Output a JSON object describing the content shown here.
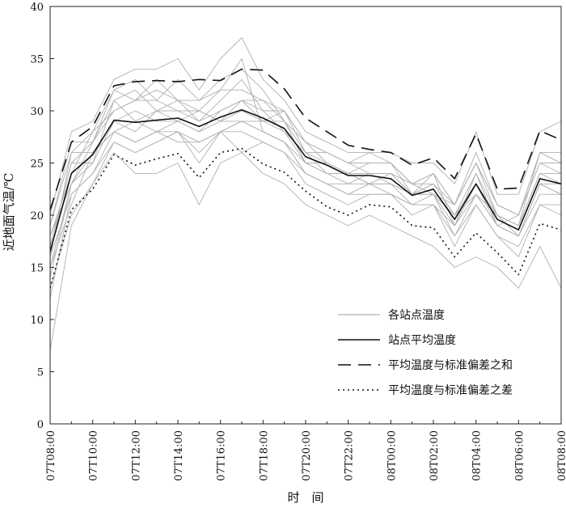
{
  "chart_data": {
    "type": "line",
    "xlabel": "时　间",
    "ylabel": "近地面气温/℃",
    "ylim": [
      0,
      40
    ],
    "yticks": [
      0,
      5,
      10,
      15,
      20,
      25,
      30,
      35,
      40
    ],
    "x": [
      "07T08:00",
      "07T09:00",
      "07T10:00",
      "07T11:00",
      "07T12:00",
      "07T13:00",
      "07T14:00",
      "07T15:00",
      "07T16:00",
      "07T17:00",
      "07T18:00",
      "07T19:00",
      "07T20:00",
      "07T21:00",
      "07T22:00",
      "07T23:00",
      "08T00:00",
      "08T01:00",
      "08T02:00",
      "08T03:00",
      "08T04:00",
      "08T05:00",
      "08T06:00",
      "08T07:00",
      "08T08:00"
    ],
    "xtick_labels": [
      "07T08:00",
      "07T10:00",
      "07T12:00",
      "07T14:00",
      "07T16:00",
      "07T18:00",
      "07T20:00",
      "07T22:00",
      "08T00:00",
      "08T02:00",
      "08T04:00",
      "08T06:00",
      "08T08:00"
    ],
    "grid": false,
    "legend_position": "bottom-right",
    "series": [
      {
        "name": "站点平均温度",
        "style": "solid",
        "color": "#111111",
        "values": [
          16.5,
          24.0,
          25.8,
          29.1,
          28.9,
          29.1,
          29.3,
          28.5,
          29.4,
          30.1,
          29.3,
          28.3,
          25.6,
          24.8,
          23.8,
          23.8,
          23.5,
          21.9,
          22.5,
          19.6,
          23.0,
          19.6,
          18.6,
          23.5,
          23.0
        ]
      },
      {
        "name": "平均温度与标准偏差之和",
        "style": "dashed",
        "color": "#111111",
        "values": [
          20.5,
          27.0,
          28.5,
          32.4,
          32.8,
          32.9,
          32.8,
          33.0,
          32.9,
          34.0,
          33.9,
          32.1,
          29.3,
          28.0,
          26.7,
          26.3,
          26.0,
          24.8,
          25.5,
          23.5,
          27.8,
          22.5,
          22.6,
          28.1,
          27.2
        ]
      },
      {
        "name": "平均温度与标准偏差之差",
        "style": "dotted",
        "color": "#111111",
        "values": [
          13.0,
          20.5,
          22.5,
          25.8,
          24.8,
          25.4,
          25.9,
          23.6,
          26.0,
          26.4,
          24.9,
          24.1,
          22.3,
          20.8,
          20.0,
          21.0,
          20.8,
          19.0,
          18.8,
          16.0,
          18.3,
          16.4,
          14.3,
          19.2,
          18.6
        ]
      },
      {
        "name": "各站点温度",
        "style": "solid",
        "color": "#b0b0b0",
        "group": "stations",
        "values": [
          18.0,
          23.0,
          27.0,
          30.0,
          31.0,
          33.0,
          31.0,
          31.0,
          32.0,
          35.0,
          28.0,
          27.0,
          25.0,
          24.0,
          24.0,
          23.0,
          24.0,
          23.0,
          22.0,
          21.0,
          25.0,
          20.0,
          19.0,
          26.0,
          25.0
        ]
      },
      {
        "name": "",
        "style": "solid",
        "color": "#b0b0b0",
        "group": "stations",
        "values": [
          12.0,
          22.0,
          24.0,
          27.0,
          26.0,
          27.0,
          28.0,
          25.0,
          28.0,
          26.0,
          27.0,
          26.0,
          23.0,
          22.0,
          21.0,
          22.0,
          22.0,
          20.0,
          21.0,
          17.0,
          21.0,
          18.0,
          17.0,
          21.0,
          20.0
        ]
      },
      {
        "name": "",
        "style": "solid",
        "color": "#b0b0b0",
        "group": "stations",
        "values": [
          20.0,
          28.0,
          29.0,
          33.0,
          34.0,
          34.0,
          35.0,
          32.0,
          35.0,
          37.0,
          33.0,
          31.0,
          28.0,
          27.0,
          26.0,
          26.0,
          26.0,
          25.0,
          25.0,
          23.0,
          28.0,
          22.0,
          22.0,
          28.0,
          29.0
        ]
      },
      {
        "name": "",
        "style": "solid",
        "color": "#b0b0b0",
        "group": "stations",
        "values": [
          7.0,
          19.0,
          23.0,
          26.0,
          24.0,
          24.0,
          25.0,
          21.0,
          25.0,
          26.0,
          24.0,
          23.0,
          21.0,
          20.0,
          19.0,
          20.0,
          19.0,
          18.0,
          17.0,
          15.0,
          16.0,
          15.0,
          13.0,
          17.0,
          13.0
        ]
      },
      {
        "name": "",
        "style": "solid",
        "color": "#b0b0b0",
        "group": "stations",
        "values": [
          17.0,
          25.0,
          25.0,
          31.0,
          29.0,
          30.0,
          30.0,
          29.0,
          30.0,
          31.0,
          31.0,
          29.0,
          26.0,
          25.0,
          24.0,
          24.0,
          24.0,
          22.0,
          23.0,
          20.0,
          24.0,
          20.0,
          19.0,
          24.0,
          24.0
        ]
      },
      {
        "name": "",
        "style": "solid",
        "color": "#b0b0b0",
        "group": "stations",
        "values": [
          15.0,
          21.0,
          26.0,
          28.0,
          27.0,
          28.0,
          27.0,
          27.0,
          28.0,
          29.0,
          28.0,
          27.0,
          24.0,
          23.0,
          23.0,
          23.0,
          23.0,
          21.0,
          22.0,
          18.0,
          22.0,
          19.0,
          18.0,
          23.0,
          22.0
        ]
      },
      {
        "name": "",
        "style": "solid",
        "color": "#b0b0b0",
        "group": "stations",
        "values": [
          19.0,
          27.0,
          27.0,
          32.0,
          33.0,
          31.0,
          33.0,
          31.0,
          33.0,
          34.0,
          32.0,
          29.0,
          27.0,
          26.0,
          25.0,
          25.0,
          25.0,
          23.0,
          24.0,
          21.0,
          26.0,
          21.0,
          20.0,
          26.0,
          26.0
        ]
      },
      {
        "name": "",
        "style": "solid",
        "color": "#b0b0b0",
        "group": "stations",
        "values": [
          14.0,
          23.0,
          25.0,
          29.0,
          30.0,
          29.0,
          29.0,
          30.0,
          29.0,
          29.0,
          29.0,
          30.0,
          26.0,
          24.0,
          23.0,
          24.0,
          23.0,
          22.0,
          22.0,
          19.0,
          23.0,
          19.0,
          18.0,
          23.0,
          23.0
        ]
      },
      {
        "name": "",
        "style": "solid",
        "color": "#b0b0b0",
        "group": "stations",
        "values": [
          16.0,
          26.0,
          26.0,
          29.0,
          28.0,
          30.0,
          29.0,
          28.0,
          30.0,
          31.0,
          29.0,
          28.0,
          25.0,
          25.0,
          24.0,
          24.0,
          24.0,
          22.0,
          23.0,
          20.0,
          23.0,
          20.0,
          19.0,
          24.0,
          23.0
        ]
      },
      {
        "name": "",
        "style": "solid",
        "color": "#b0b0b0",
        "group": "stations",
        "values": [
          18.0,
          24.0,
          28.0,
          30.0,
          31.0,
          31.0,
          30.0,
          30.0,
          29.0,
          31.0,
          30.0,
          28.0,
          26.0,
          26.0,
          25.0,
          24.0,
          24.0,
          23.0,
          23.0,
          21.0,
          25.0,
          21.0,
          20.0,
          25.0,
          24.0
        ]
      },
      {
        "name": "",
        "style": "solid",
        "color": "#b0b0b0",
        "group": "stations",
        "values": [
          13.0,
          20.0,
          23.0,
          27.0,
          26.0,
          27.0,
          28.0,
          26.0,
          28.0,
          28.0,
          27.0,
          26.0,
          24.0,
          23.0,
          22.0,
          22.0,
          22.0,
          21.0,
          21.0,
          18.0,
          21.0,
          18.0,
          16.0,
          21.0,
          21.0
        ]
      },
      {
        "name": "",
        "style": "solid",
        "color": "#b0b0b0",
        "group": "stations",
        "values": [
          17.0,
          25.0,
          27.0,
          31.0,
          32.0,
          30.0,
          31.0,
          29.0,
          31.0,
          33.0,
          30.0,
          30.0,
          27.0,
          25.0,
          24.0,
          25.0,
          25.0,
          22.0,
          24.0,
          19.0,
          24.0,
          19.0,
          20.0,
          25.0,
          25.0
        ]
      },
      {
        "name": "",
        "style": "solid",
        "color": "#b0b0b0",
        "group": "stations",
        "values": [
          15.0,
          23.0,
          26.0,
          28.0,
          29.0,
          28.0,
          29.0,
          28.0,
          29.0,
          30.0,
          29.0,
          29.0,
          25.0,
          24.0,
          24.0,
          23.0,
          23.0,
          22.0,
          22.0,
          20.0,
          22.0,
          20.0,
          18.0,
          23.0,
          22.0
        ]
      },
      {
        "name": "",
        "style": "solid",
        "color": "#b0b0b0",
        "group": "stations",
        "values": [
          19.0,
          26.0,
          28.0,
          32.0,
          31.0,
          32.0,
          31.0,
          30.0,
          32.0,
          32.0,
          31.0,
          30.0,
          27.0,
          26.0,
          25.0,
          26.0,
          25.0,
          23.0,
          24.0,
          21.0,
          25.0,
          21.0,
          20.0,
          26.0,
          25.0
        ]
      },
      {
        "name": "",
        "style": "solid",
        "color": "#b0b0b0",
        "group": "stations",
        "values": [
          16.0,
          22.0,
          24.0,
          28.0,
          27.0,
          28.0,
          28.0,
          27.0,
          28.0,
          29.0,
          28.0,
          27.0,
          24.0,
          23.0,
          22.0,
          23.0,
          22.0,
          21.0,
          21.0,
          19.0,
          22.0,
          19.0,
          18.0,
          22.0,
          22.0
        ]
      }
    ]
  }
}
